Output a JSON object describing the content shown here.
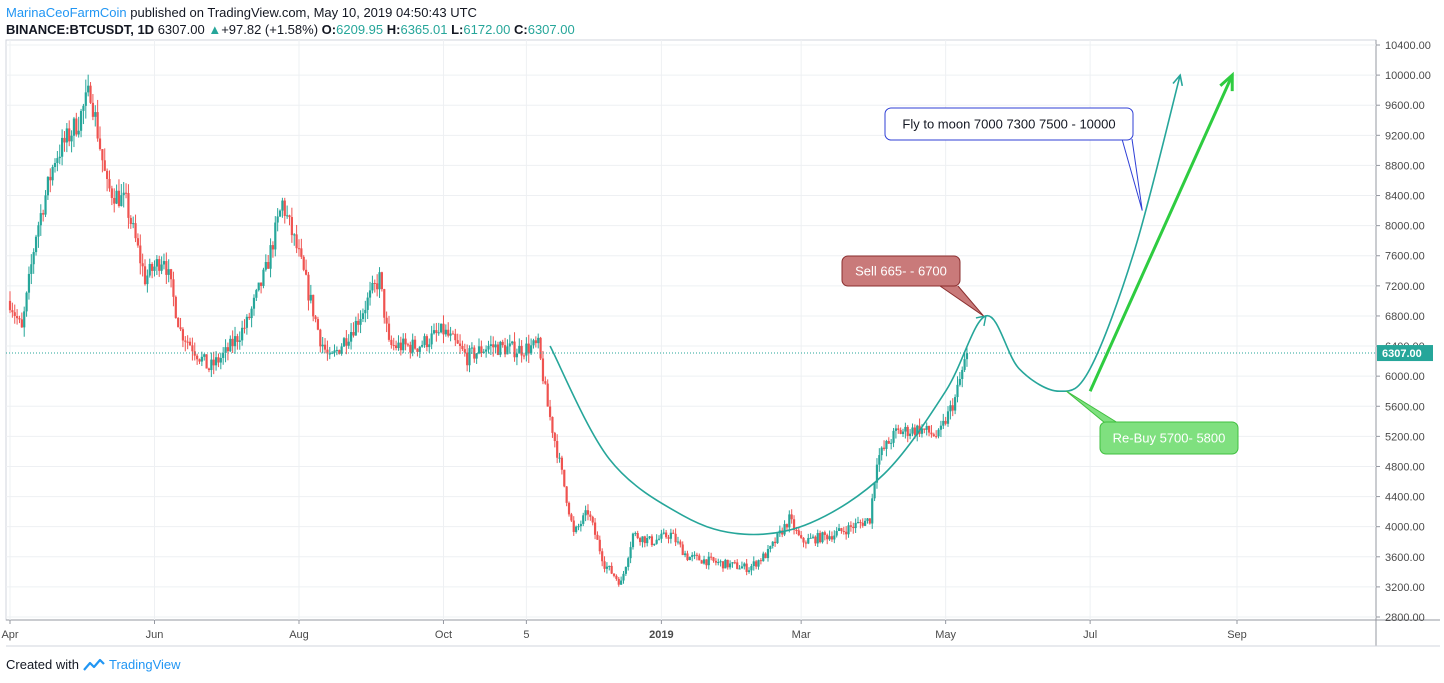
{
  "header": {
    "author": "MarinaCeoFarmCoin",
    "published": "published on TradingView.com, May 10, 2019 04:50:43 UTC",
    "symbol": "BINANCE:BTCUSDT, 1D",
    "last": "6307.00",
    "change": "+97.82 (+1.58%)",
    "o_label": "O:",
    "o": "6209.95",
    "h_label": "H:",
    "h": "6365.01",
    "l_label": "L:",
    "l": "6172.00",
    "c_label": "C:",
    "c": "6307.00"
  },
  "footer": {
    "created": "Created with",
    "brand": "TradingView"
  },
  "colors": {
    "up": "#26a69a",
    "down": "#ef5350",
    "projection": "#26a69a",
    "arrow_green": "#2ecc40",
    "sell_box": "#c97a7a",
    "buy_box": "#7fe07f",
    "note_border": "#2f3fd6"
  },
  "chart_data": {
    "type": "candlestick",
    "symbol": "BINANCE:BTCUSDT",
    "interval": "1D",
    "x_ticks": [
      "Apr",
      "Jun",
      "Aug",
      "Oct",
      "5",
      "2019",
      "Mar",
      "May",
      "Jul",
      "Sep"
    ],
    "y_ticks": [
      2800,
      3200,
      3600,
      4000,
      4400,
      4800,
      5200,
      5600,
      6000,
      6400,
      6800,
      7200,
      7600,
      8000,
      8400,
      8800,
      9200,
      9600,
      10000,
      10400
    ],
    "ylim": [
      2800,
      10400
    ],
    "last_price": 6307.0,
    "price_path": [
      {
        "date": "2018-04-01",
        "price": 7000
      },
      {
        "date": "2018-04-06",
        "price": 6600
      },
      {
        "date": "2018-04-12",
        "price": 7900
      },
      {
        "date": "2018-04-20",
        "price": 8900
      },
      {
        "date": "2018-04-30",
        "price": 9400
      },
      {
        "date": "2018-05-05",
        "price": 9800
      },
      {
        "date": "2018-05-12",
        "price": 8500
      },
      {
        "date": "2018-05-20",
        "price": 8300
      },
      {
        "date": "2018-05-28",
        "price": 7300
      },
      {
        "date": "2018-06-05",
        "price": 7600
      },
      {
        "date": "2018-06-12",
        "price": 6600
      },
      {
        "date": "2018-06-24",
        "price": 6100
      },
      {
        "date": "2018-07-01",
        "price": 6300
      },
      {
        "date": "2018-07-10",
        "price": 6700
      },
      {
        "date": "2018-07-18",
        "price": 7400
      },
      {
        "date": "2018-07-25",
        "price": 8300
      },
      {
        "date": "2018-08-01",
        "price": 7600
      },
      {
        "date": "2018-08-10",
        "price": 6500
      },
      {
        "date": "2018-08-14",
        "price": 6200
      },
      {
        "date": "2018-08-25",
        "price": 6700
      },
      {
        "date": "2018-09-04",
        "price": 7300
      },
      {
        "date": "2018-09-08",
        "price": 6400
      },
      {
        "date": "2018-09-20",
        "price": 6400
      },
      {
        "date": "2018-10-01",
        "price": 6600
      },
      {
        "date": "2018-10-11",
        "price": 6250
      },
      {
        "date": "2018-10-20",
        "price": 6400
      },
      {
        "date": "2018-11-01",
        "price": 6350
      },
      {
        "date": "2018-11-10",
        "price": 6400
      },
      {
        "date": "2018-11-14",
        "price": 5600
      },
      {
        "date": "2018-11-20",
        "price": 4700
      },
      {
        "date": "2018-11-25",
        "price": 3900
      },
      {
        "date": "2018-12-01",
        "price": 4200
      },
      {
        "date": "2018-12-08",
        "price": 3500
      },
      {
        "date": "2018-12-15",
        "price": 3250
      },
      {
        "date": "2018-12-20",
        "price": 3900
      },
      {
        "date": "2018-12-28",
        "price": 3800
      },
      {
        "date": "2019-01-05",
        "price": 3900
      },
      {
        "date": "2019-01-12",
        "price": 3600
      },
      {
        "date": "2019-01-20",
        "price": 3550
      },
      {
        "date": "2019-01-28",
        "price": 3500
      },
      {
        "date": "2019-02-07",
        "price": 3450
      },
      {
        "date": "2019-02-15",
        "price": 3650
      },
      {
        "date": "2019-02-24",
        "price": 4100
      },
      {
        "date": "2019-03-01",
        "price": 3800
      },
      {
        "date": "2019-03-15",
        "price": 3900
      },
      {
        "date": "2019-03-30",
        "price": 4100
      },
      {
        "date": "2019-04-02",
        "price": 4900
      },
      {
        "date": "2019-04-10",
        "price": 5250
      },
      {
        "date": "2019-04-20",
        "price": 5300
      },
      {
        "date": "2019-04-28",
        "price": 5200
      },
      {
        "date": "2019-05-05",
        "price": 5700
      },
      {
        "date": "2019-05-10",
        "price": 6307
      }
    ],
    "projection_curve": [
      {
        "date": "2018-11-15",
        "price": 6400
      },
      {
        "date": "2018-12-10",
        "price": 4900
      },
      {
        "date": "2019-01-10",
        "price": 4150
      },
      {
        "date": "2019-02-05",
        "price": 3900
      },
      {
        "date": "2019-03-05",
        "price": 4050
      },
      {
        "date": "2019-04-05",
        "price": 4700
      },
      {
        "date": "2019-05-01",
        "price": 5800
      },
      {
        "date": "2019-05-18",
        "price": 6800
      },
      {
        "date": "2019-06-01",
        "price": 6100
      },
      {
        "date": "2019-06-18",
        "price": 5800
      },
      {
        "date": "2019-07-01",
        "price": 6100
      },
      {
        "date": "2019-07-20",
        "price": 7700
      },
      {
        "date": "2019-08-08",
        "price": 10000
      }
    ],
    "green_arrow": {
      "from": {
        "date": "2019-07-01",
        "price": 5800
      },
      "to": {
        "date": "2019-08-30",
        "price": 10000
      }
    },
    "annotations": [
      {
        "text": "Sell 665- - 6700",
        "style": "sell",
        "anchor": {
          "date": "2019-05-17",
          "price": 6800
        }
      },
      {
        "text": "Re-Buy 5700- 5800",
        "style": "buy",
        "anchor": {
          "date": "2019-06-21",
          "price": 5800
        }
      },
      {
        "text": "Fly to moon 7000 7300 7500 - 10000",
        "style": "note",
        "anchor": {
          "date": "2019-07-23",
          "price": 8200
        }
      }
    ]
  }
}
